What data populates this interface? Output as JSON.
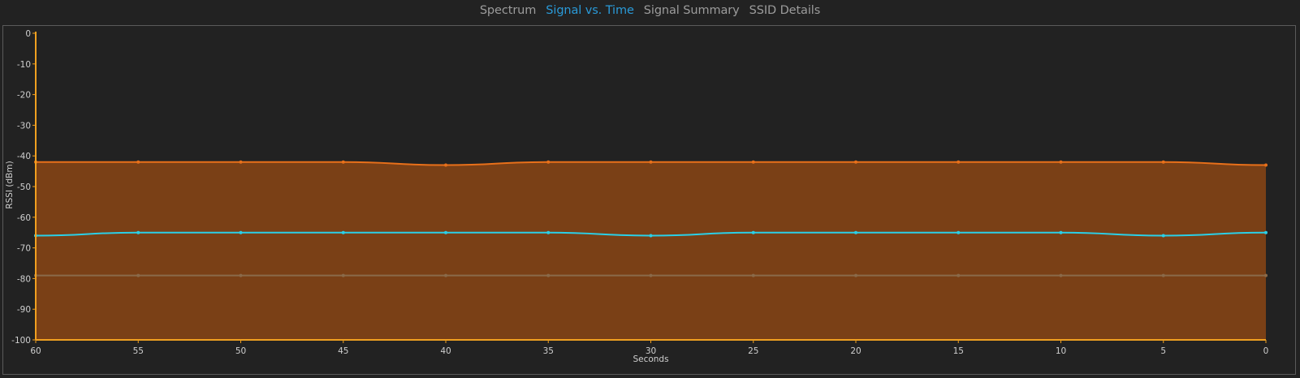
{
  "tabs": [
    {
      "label": "Spectrum",
      "active": false
    },
    {
      "label": "Signal vs. Time",
      "active": true
    },
    {
      "label": "Signal Summary",
      "active": false
    },
    {
      "label": "SSID Details",
      "active": false
    }
  ],
  "chart_data": {
    "type": "area",
    "xlabel": "Seconds",
    "ylabel": "RSSI (dBm)",
    "xlim": [
      60,
      0
    ],
    "ylim": [
      -100,
      0
    ],
    "x_ticks": [
      60,
      55,
      50,
      45,
      40,
      35,
      30,
      25,
      20,
      15,
      10,
      5,
      0
    ],
    "y_ticks": [
      0,
      -10,
      -20,
      -30,
      -40,
      -50,
      -60,
      -70,
      -80,
      -90,
      -100
    ],
    "grid": false,
    "axis_color": "#f0a020",
    "series": [
      {
        "color": "#e8701a",
        "fill": "#7a4016",
        "filled": true,
        "x": [
          60,
          55,
          50,
          45,
          40,
          35,
          30,
          25,
          20,
          15,
          10,
          5,
          0
        ],
        "values": [
          -42,
          -42,
          -42,
          -42,
          -43,
          -42,
          -42,
          -42,
          -42,
          -42,
          -42,
          -42,
          -43
        ]
      },
      {
        "color": "#2ad0e8",
        "filled": false,
        "x": [
          60,
          55,
          50,
          45,
          40,
          35,
          30,
          25,
          20,
          15,
          10,
          5,
          0
        ],
        "values": [
          -66,
          -65,
          -65,
          -65,
          -65,
          -65,
          -66,
          -65,
          -65,
          -65,
          -65,
          -66,
          -65
        ]
      },
      {
        "color": "#8a6a4a",
        "filled": false,
        "x": [
          60,
          55,
          50,
          45,
          40,
          35,
          30,
          25,
          20,
          15,
          10,
          5,
          0
        ],
        "values": [
          -79,
          -79,
          -79,
          -79,
          -79,
          -79,
          -79,
          -79,
          -79,
          -79,
          -79,
          -79,
          -79
        ]
      }
    ]
  }
}
